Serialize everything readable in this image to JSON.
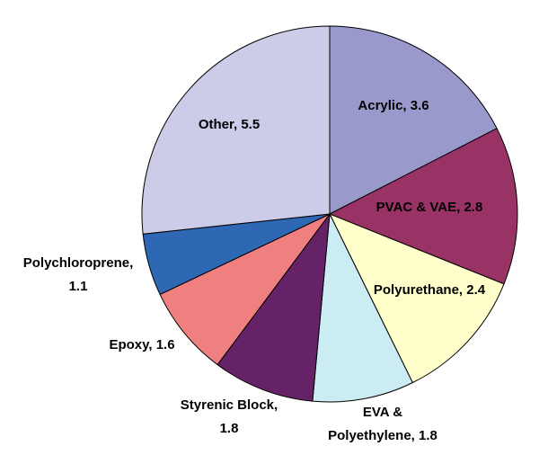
{
  "chart_data": {
    "type": "pie",
    "title": "",
    "start_angle_deg": 0,
    "direction": "clockwise",
    "slices": [
      {
        "label": "Acrylic, 3.6",
        "name": "Acrylic",
        "value": 3.6,
        "color": "#9999CC"
      },
      {
        "label": "PVAC & VAE, 2.8",
        "name": "PVAC & VAE",
        "value": 2.8,
        "color": "#993366"
      },
      {
        "label": "Polyurethane, 2.4",
        "name": "Polyurethane",
        "value": 2.4,
        "color": "#FFFFCC"
      },
      {
        "label": "EVA &\nPolyethylene, 1.8",
        "name": "EVA & Polyethylene",
        "value": 1.8,
        "color": "#CCECF4"
      },
      {
        "label": "Styrenic Block,\n1.8",
        "name": "Styrenic Block",
        "value": 1.8,
        "color": "#662266"
      },
      {
        "label": "Epoxy, 1.6",
        "name": "Epoxy",
        "value": 1.6,
        "color": "#F08080"
      },
      {
        "label": "Polychloroprene,\n1.1",
        "name": "Polychloroprene",
        "value": 1.1,
        "color": "#2E68B4"
      },
      {
        "label": "Other, 5.5",
        "name": "Other",
        "value": 5.5,
        "color": "#CCCCE8"
      }
    ]
  }
}
